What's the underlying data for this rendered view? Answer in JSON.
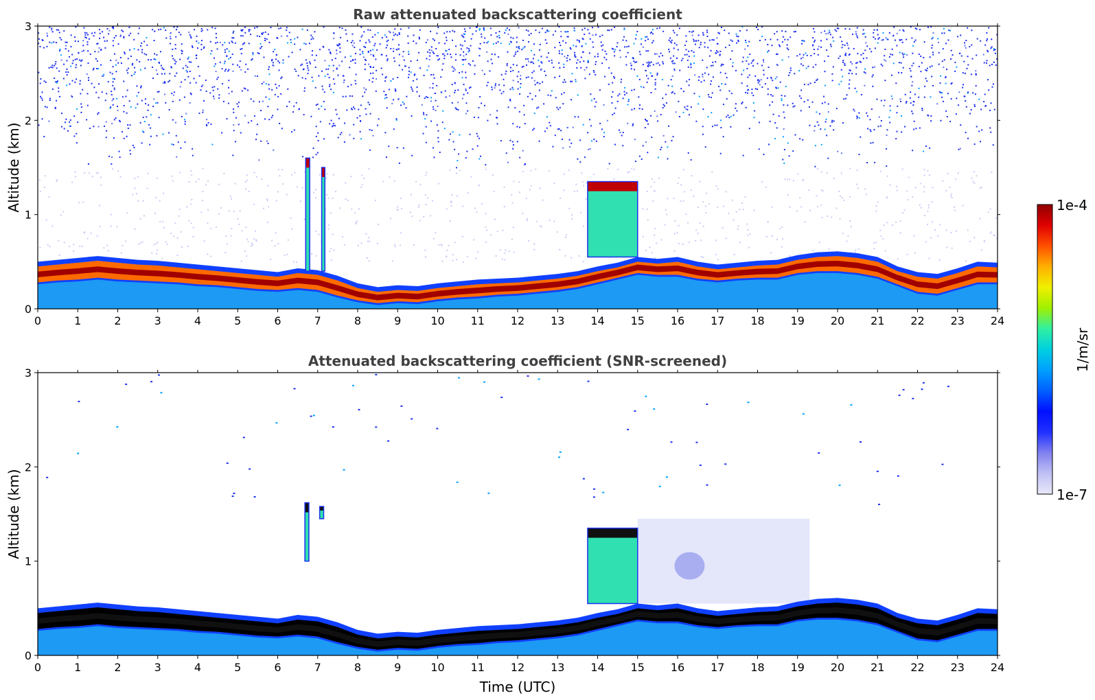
{
  "colors": {
    "background": "#ffffff",
    "title_text": "#404040",
    "colormap": [
      "#e8e8f8",
      "#c0c0f4",
      "#8080f0",
      "#2030ff",
      "#0010ff",
      "#0060ff",
      "#00a0ff",
      "#00d0e0",
      "#30f0a0",
      "#a0f000",
      "#f0f000",
      "#ffb000",
      "#ff5000",
      "#e00000",
      "#900000"
    ],
    "screened_core": "#000000"
  },
  "chart_data": [
    {
      "type": "heatmap",
      "title": "Raw attenuated backscattering coefficient",
      "xlabel": "",
      "ylabel": "Altitude (km)",
      "xlim": [
        0,
        24
      ],
      "ylim": [
        0,
        3
      ],
      "xticks": [
        "0",
        "1",
        "2",
        "3",
        "4",
        "5",
        "6",
        "7",
        "8",
        "9",
        "10",
        "11",
        "12",
        "13",
        "14",
        "15",
        "16",
        "17",
        "18",
        "19",
        "20",
        "21",
        "22",
        "23",
        "24"
      ],
      "yticks": [
        "0",
        "1",
        "2",
        "3"
      ],
      "layer_top_km": [
        0.45,
        0.47,
        0.49,
        0.51,
        0.49,
        0.47,
        0.46,
        0.44,
        0.42,
        0.4,
        0.38,
        0.36,
        0.34,
        0.38,
        0.36,
        0.3,
        0.22,
        0.18,
        0.2,
        0.19,
        0.22,
        0.24,
        0.26,
        0.27,
        0.28,
        0.3,
        0.32,
        0.35,
        0.4,
        0.44,
        0.5,
        0.48,
        0.5,
        0.45,
        0.42,
        0.44,
        0.46,
        0.47,
        0.52,
        0.55,
        0.56,
        0.54,
        0.5,
        0.4,
        0.34,
        0.32,
        0.38,
        0.45,
        0.44
      ],
      "layer_base_km": [
        0.28,
        0.3,
        0.31,
        0.33,
        0.31,
        0.3,
        0.29,
        0.28,
        0.26,
        0.25,
        0.23,
        0.21,
        0.2,
        0.22,
        0.2,
        0.14,
        0.09,
        0.06,
        0.08,
        0.07,
        0.1,
        0.12,
        0.13,
        0.15,
        0.16,
        0.18,
        0.2,
        0.23,
        0.28,
        0.33,
        0.38,
        0.36,
        0.36,
        0.32,
        0.3,
        0.32,
        0.33,
        0.33,
        0.38,
        0.4,
        0.4,
        0.38,
        0.34,
        0.26,
        0.18,
        0.16,
        0.22,
        0.28,
        0.28
      ],
      "cloud_features": [
        {
          "t0": 13.75,
          "t1": 15.0,
          "base_km": 0.55,
          "top_km": 1.35
        },
        {
          "t0": 6.7,
          "t1": 6.8,
          "base_km": 0.4,
          "top_km": 1.6
        },
        {
          "t0": 7.1,
          "t1": 7.18,
          "base_km": 0.4,
          "top_km": 1.5
        }
      ],
      "noise_above_km": 1.5
    },
    {
      "type": "heatmap",
      "title": "Attenuated backscattering coefficient (SNR-screened)",
      "xlabel": "Time (UTC)",
      "ylabel": "Altitude (km)",
      "xlim": [
        0,
        24
      ],
      "ylim": [
        0,
        3
      ],
      "xticks": [
        "0",
        "1",
        "2",
        "3",
        "4",
        "5",
        "6",
        "7",
        "8",
        "9",
        "10",
        "11",
        "12",
        "13",
        "14",
        "15",
        "16",
        "17",
        "18",
        "19",
        "20",
        "21",
        "22",
        "23",
        "24"
      ],
      "yticks": [
        "0",
        "1",
        "2",
        "3"
      ],
      "cloud_features": [
        {
          "t0": 13.75,
          "t1": 15.0,
          "base_km": 0.55,
          "top_km": 1.35
        },
        {
          "t0": 6.68,
          "t1": 6.78,
          "base_km": 1.0,
          "top_km": 1.62
        },
        {
          "t0": 7.05,
          "t1": 7.15,
          "base_km": 1.45,
          "top_km": 1.58
        }
      ],
      "faint_region": {
        "t0": 15.0,
        "t1": 19.3,
        "base_km": 0.55,
        "top_km": 1.45
      }
    }
  ],
  "colorbar": {
    "label": "1/m/sr",
    "max_label": "1e-4",
    "min_label": "1e-7",
    "range": [
      1e-07,
      0.0001
    ],
    "scale": "log"
  }
}
